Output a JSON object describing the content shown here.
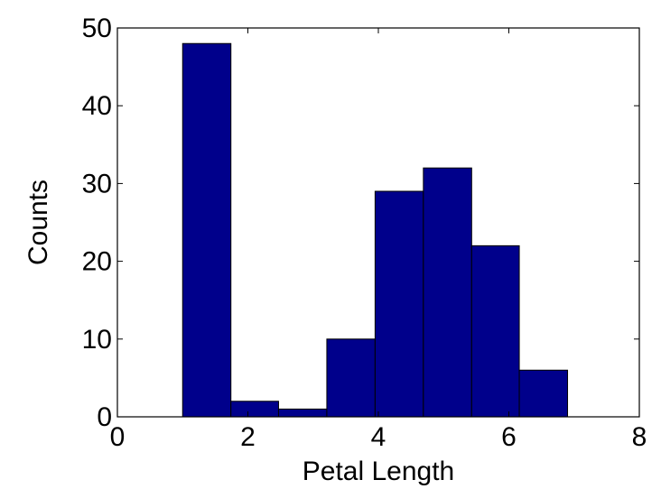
{
  "chart_data": {
    "type": "bar",
    "title": "",
    "xlabel": "Petal Length",
    "ylabel": "Counts",
    "xlim": [
      0,
      8
    ],
    "ylim": [
      0,
      50
    ],
    "x_ticks": [
      "0",
      "2",
      "4",
      "6",
      "8"
    ],
    "y_ticks": [
      "0",
      "10",
      "20",
      "30",
      "40",
      "50"
    ],
    "grid": false,
    "bar_color": "#00008b",
    "bins": [
      {
        "start": 1.0,
        "end": 1.74,
        "value": 48
      },
      {
        "start": 1.74,
        "end": 2.47,
        "value": 2
      },
      {
        "start": 2.47,
        "end": 3.21,
        "value": 1
      },
      {
        "start": 3.21,
        "end": 3.95,
        "value": 10
      },
      {
        "start": 3.95,
        "end": 4.69,
        "value": 29
      },
      {
        "start": 4.69,
        "end": 5.43,
        "value": 32
      },
      {
        "start": 5.43,
        "end": 6.16,
        "value": 22
      },
      {
        "start": 6.16,
        "end": 6.9,
        "value": 6
      }
    ]
  }
}
